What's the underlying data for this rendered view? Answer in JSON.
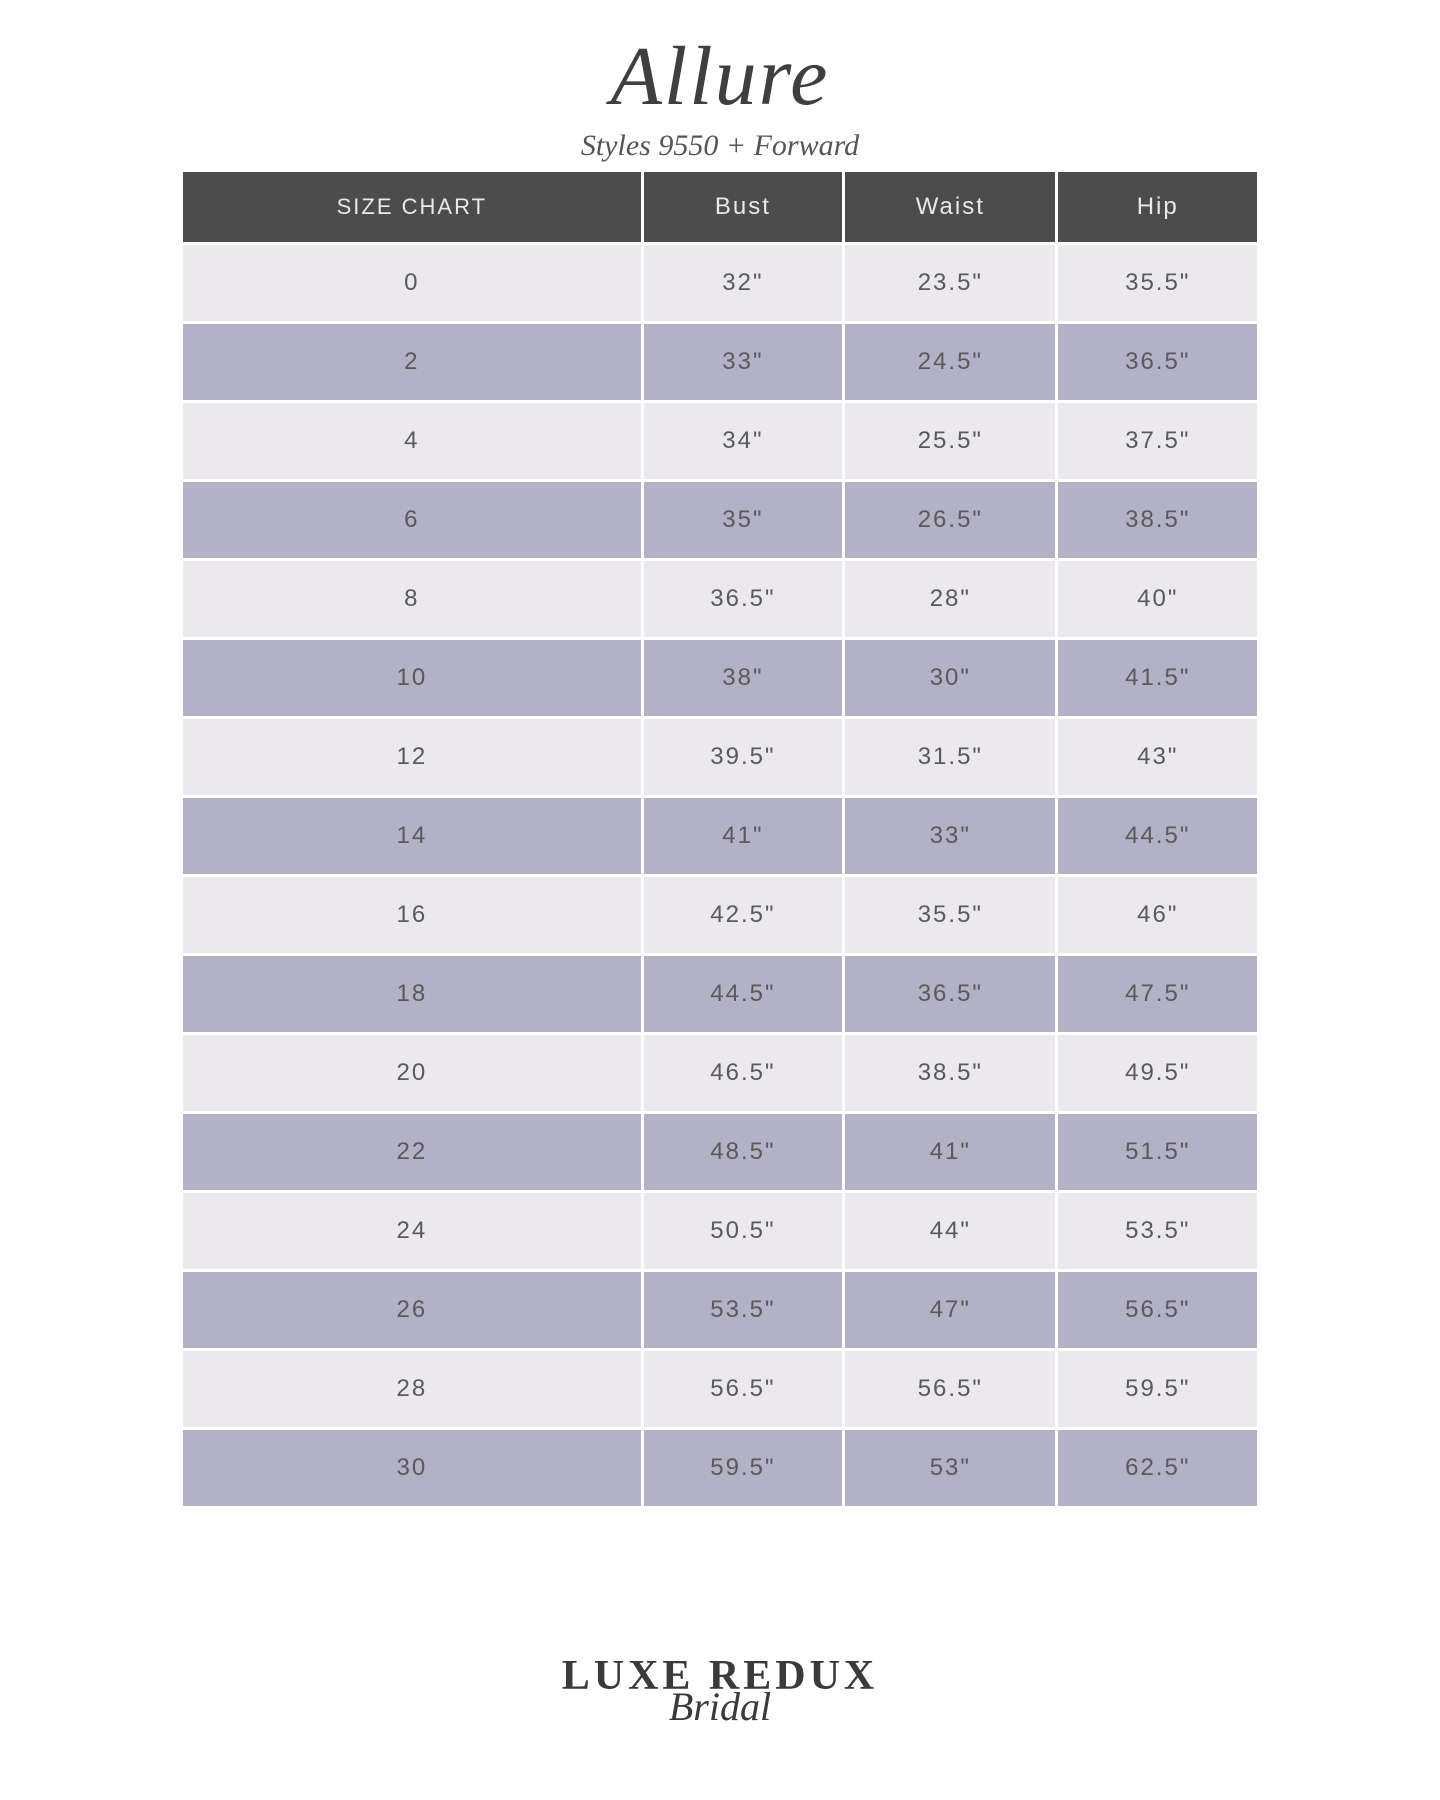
{
  "header": {
    "brand": "Allure",
    "subtitle": "Styles 9550 + Forward"
  },
  "table": {
    "header_bg": "#4c4c4c",
    "header_text_color": "#e9e9e9",
    "row_light_bg": "#ebe9ee",
    "row_dark_bg": "#b2b1c5",
    "cell_text_color": "#5a5a5a",
    "columns": [
      "SIZE CHART",
      "Bust",
      "Waist",
      "Hip"
    ],
    "rows": [
      {
        "size": "0",
        "bust": "32\"",
        "waist": "23.5\"",
        "hip": "35.5\""
      },
      {
        "size": "2",
        "bust": "33\"",
        "waist": "24.5\"",
        "hip": "36.5\""
      },
      {
        "size": "4",
        "bust": "34\"",
        "waist": "25.5\"",
        "hip": "37.5\""
      },
      {
        "size": "6",
        "bust": "35\"",
        "waist": "26.5\"",
        "hip": "38.5\""
      },
      {
        "size": "8",
        "bust": "36.5\"",
        "waist": "28\"",
        "hip": "40\""
      },
      {
        "size": "10",
        "bust": "38\"",
        "waist": "30\"",
        "hip": "41.5\""
      },
      {
        "size": "12",
        "bust": "39.5\"",
        "waist": "31.5\"",
        "hip": "43\""
      },
      {
        "size": "14",
        "bust": "41\"",
        "waist": "33\"",
        "hip": "44.5\""
      },
      {
        "size": "16",
        "bust": "42.5\"",
        "waist": "35.5\"",
        "hip": "46\""
      },
      {
        "size": "18",
        "bust": "44.5\"",
        "waist": "36.5\"",
        "hip": "47.5\""
      },
      {
        "size": "20",
        "bust": "46.5\"",
        "waist": "38.5\"",
        "hip": "49.5\""
      },
      {
        "size": "22",
        "bust": "48.5\"",
        "waist": "41\"",
        "hip": "51.5\""
      },
      {
        "size": "24",
        "bust": "50.5\"",
        "waist": "44\"",
        "hip": "53.5\""
      },
      {
        "size": "26",
        "bust": "53.5\"",
        "waist": "47\"",
        "hip": "56.5\""
      },
      {
        "size": "28",
        "bust": "56.5\"",
        "waist": "56.5\"",
        "hip": "59.5\""
      },
      {
        "size": "30",
        "bust": "59.5\"",
        "waist": "53\"",
        "hip": "62.5\""
      }
    ]
  },
  "footer": {
    "line1": "LUXE REDUX",
    "line2": "Bridal"
  }
}
